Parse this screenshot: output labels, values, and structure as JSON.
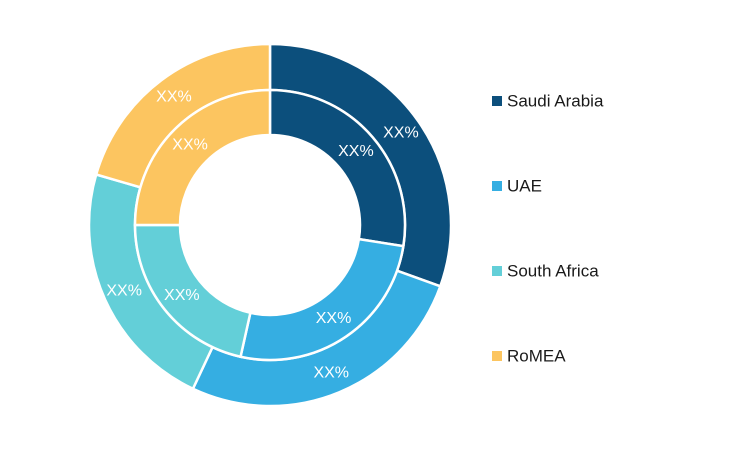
{
  "chart_data": {
    "type": "pie",
    "subtype": "double-donut",
    "title": "",
    "legend_position": "right",
    "categories": [
      "Saudi Arabia",
      "UAE",
      "South Africa",
      "RoMEA"
    ],
    "colors": [
      "#0c4f7c",
      "#35aee2",
      "#63cfd8",
      "#fcc560"
    ],
    "series": [
      {
        "ring": "outer",
        "values": [
          30.5,
          26.5,
          22.5,
          20.5
        ],
        "labels": [
          "XX%",
          "XX%",
          "XX%",
          "XX%"
        ]
      },
      {
        "ring": "inner",
        "values": [
          27.5,
          26.0,
          21.5,
          25.0
        ],
        "labels": [
          "XX%",
          "XX%",
          "XX%",
          "XX%"
        ]
      }
    ]
  }
}
